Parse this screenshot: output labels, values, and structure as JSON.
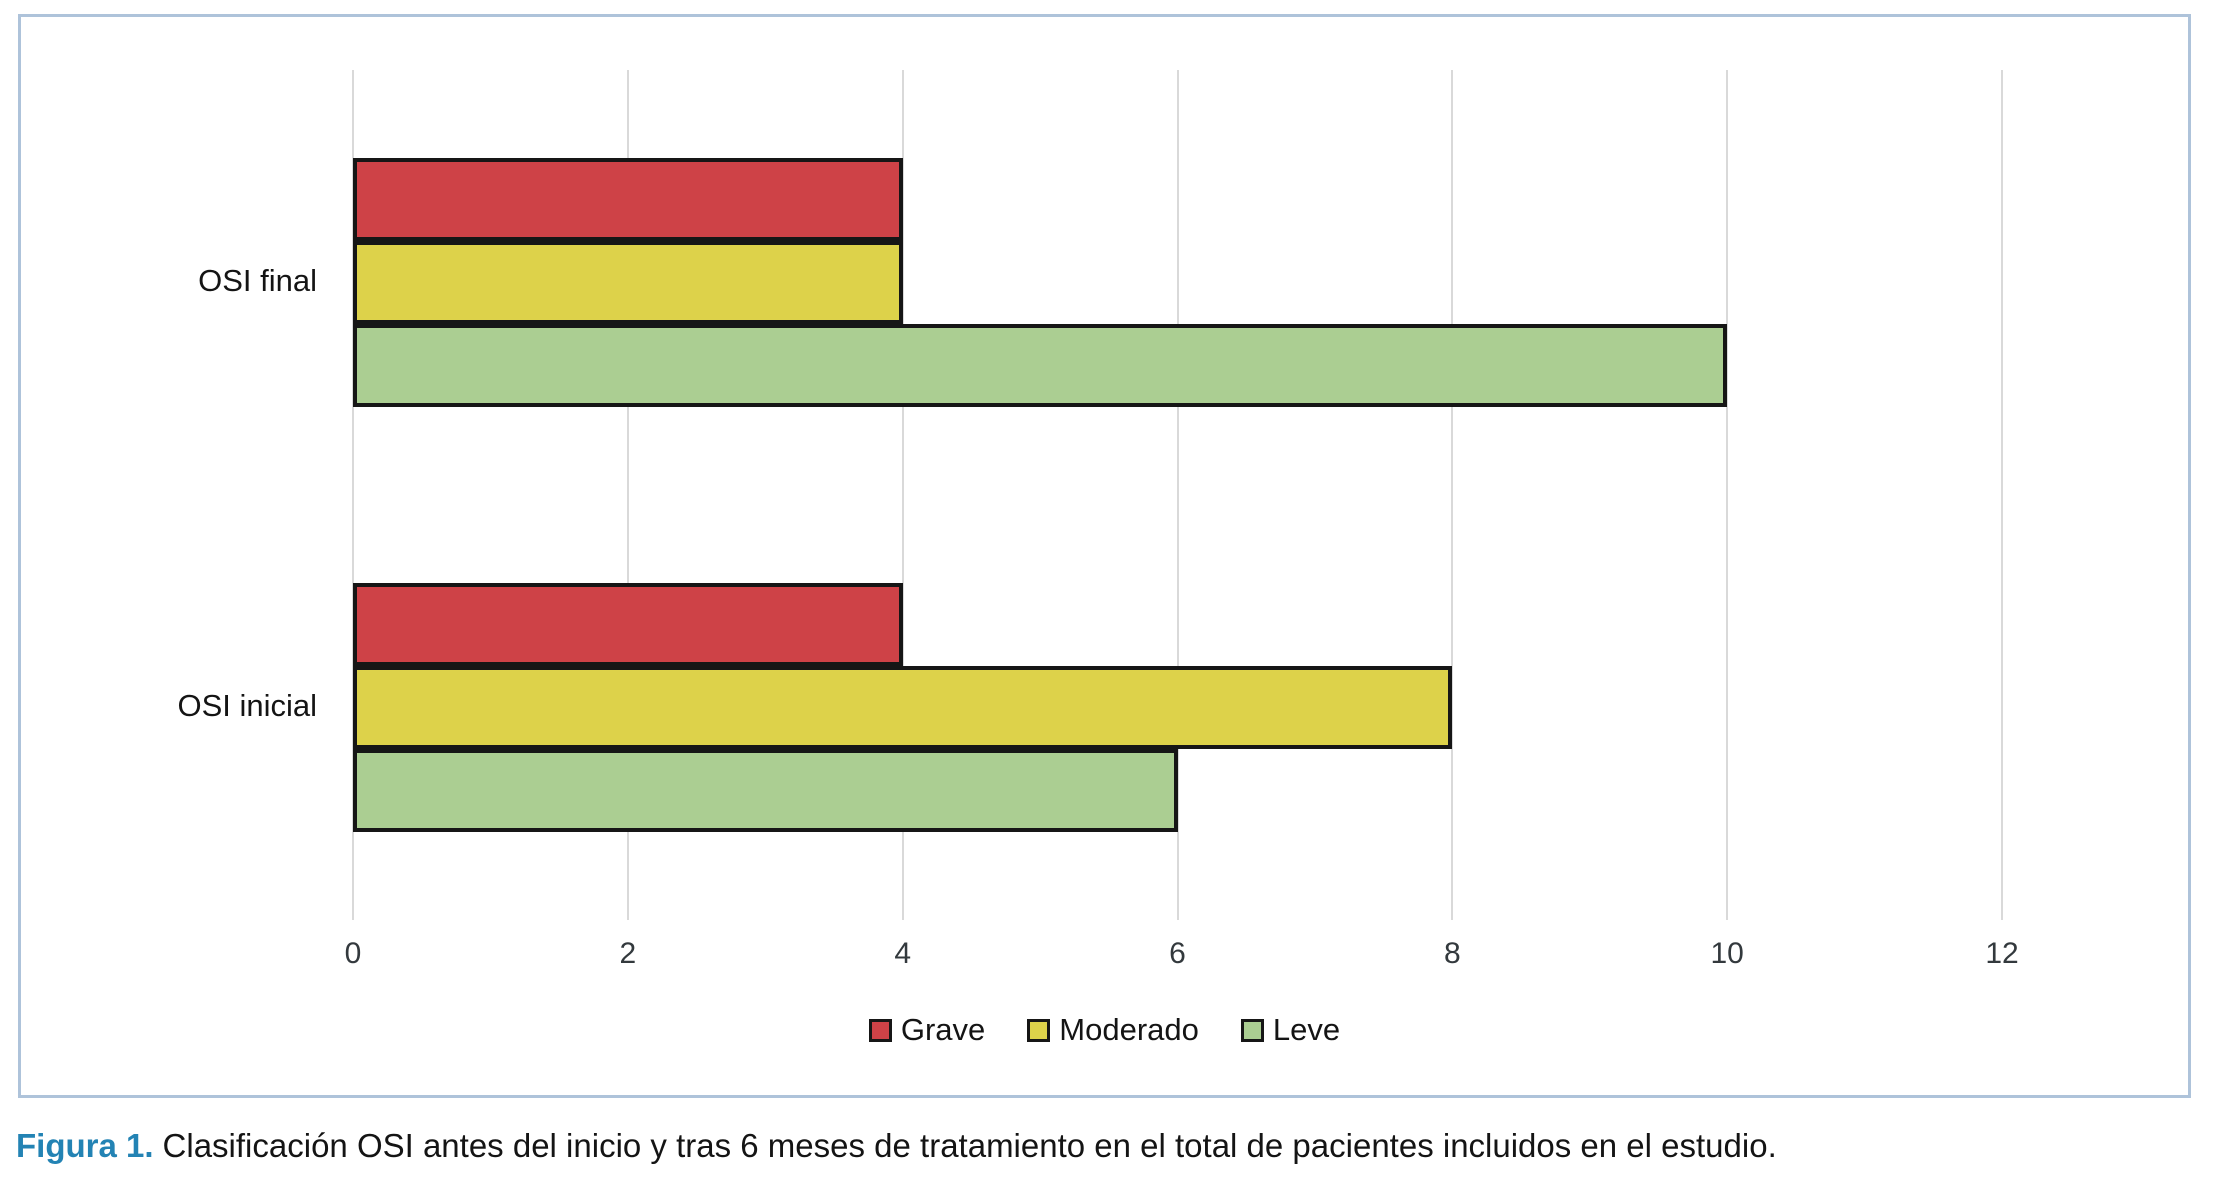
{
  "figure": {
    "caption_label": "Figura 1.",
    "caption_text": "Clasificación OSI antes del inicio y tras 6 meses de tratamiento en el total de pacientes incluidos en el estudio."
  },
  "colors": {
    "panel_border": "#aec3da",
    "gridline": "#d9d9d9",
    "bar_border": "#161616",
    "caption_accent": "#2383b4",
    "tick_text": "#33393d"
  },
  "chart_data": {
    "type": "bar",
    "orientation": "horizontal",
    "title": "",
    "xlabel": "",
    "ylabel": "",
    "categories": [
      "OSI final",
      "OSI inicial"
    ],
    "series": [
      {
        "name": "Grave",
        "color": "#ce4247",
        "values": [
          4,
          4
        ]
      },
      {
        "name": "Moderado",
        "color": "#ddd24a",
        "values": [
          4,
          8
        ]
      },
      {
        "name": "Leve",
        "color": "#abce92",
        "values": [
          10,
          6
        ]
      }
    ],
    "xlim": [
      0,
      12
    ],
    "xticks": [
      0,
      2,
      4,
      6,
      8,
      10,
      12
    ],
    "grid": "vertical",
    "legend_position": "bottom"
  }
}
